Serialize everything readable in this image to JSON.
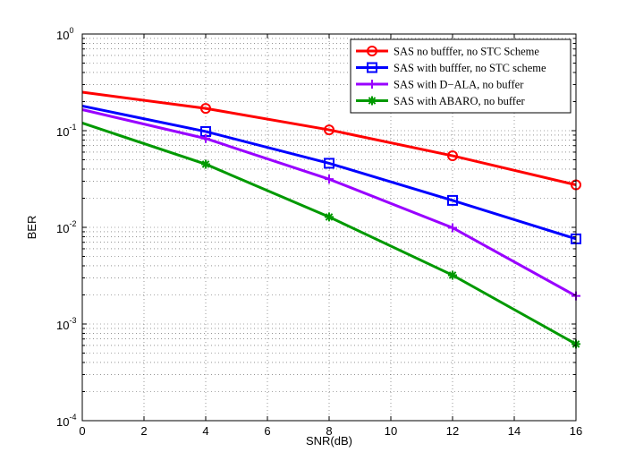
{
  "chart_data": {
    "type": "line",
    "title": "",
    "xlabel": "SNR(dB)",
    "ylabel": "BER",
    "x": [
      0,
      4,
      8,
      12,
      16
    ],
    "xlim": [
      0,
      16
    ],
    "ylim": [
      0.0001,
      1
    ],
    "yscale": "log",
    "grid": true,
    "legend_position": "top-right",
    "x_ticks": [
      "0",
      "2",
      "4",
      "6",
      "8",
      "10",
      "12",
      "14",
      "16"
    ],
    "y_ticks": [
      {
        "base": "10",
        "exp": "0"
      },
      {
        "base": "10",
        "exp": "-1"
      },
      {
        "base": "10",
        "exp": "-2"
      },
      {
        "base": "10",
        "exp": "-3"
      },
      {
        "base": "10",
        "exp": "-4"
      }
    ],
    "series": [
      {
        "name": "SAS no bufffer, no STC Scheme",
        "color": "#ff0000",
        "marker": "circle",
        "values": [
          0.25,
          0.17,
          0.102,
          0.055,
          0.0275
        ]
      },
      {
        "name": "SAS with bufffer, no STC scheme",
        "color": "#0000ff",
        "marker": "square",
        "values": [
          0.18,
          0.098,
          0.046,
          0.019,
          0.0076
        ]
      },
      {
        "name": "SAS with D−ALA, no buffer",
        "color": "#9900ff",
        "marker": "plus",
        "values": [
          0.165,
          0.083,
          0.0315,
          0.0099,
          0.00195
        ]
      },
      {
        "name": "SAS with ABARO, no buffer",
        "color": "#009900",
        "marker": "asterisk",
        "values": [
          0.12,
          0.045,
          0.0128,
          0.0032,
          0.00062
        ]
      }
    ]
  }
}
